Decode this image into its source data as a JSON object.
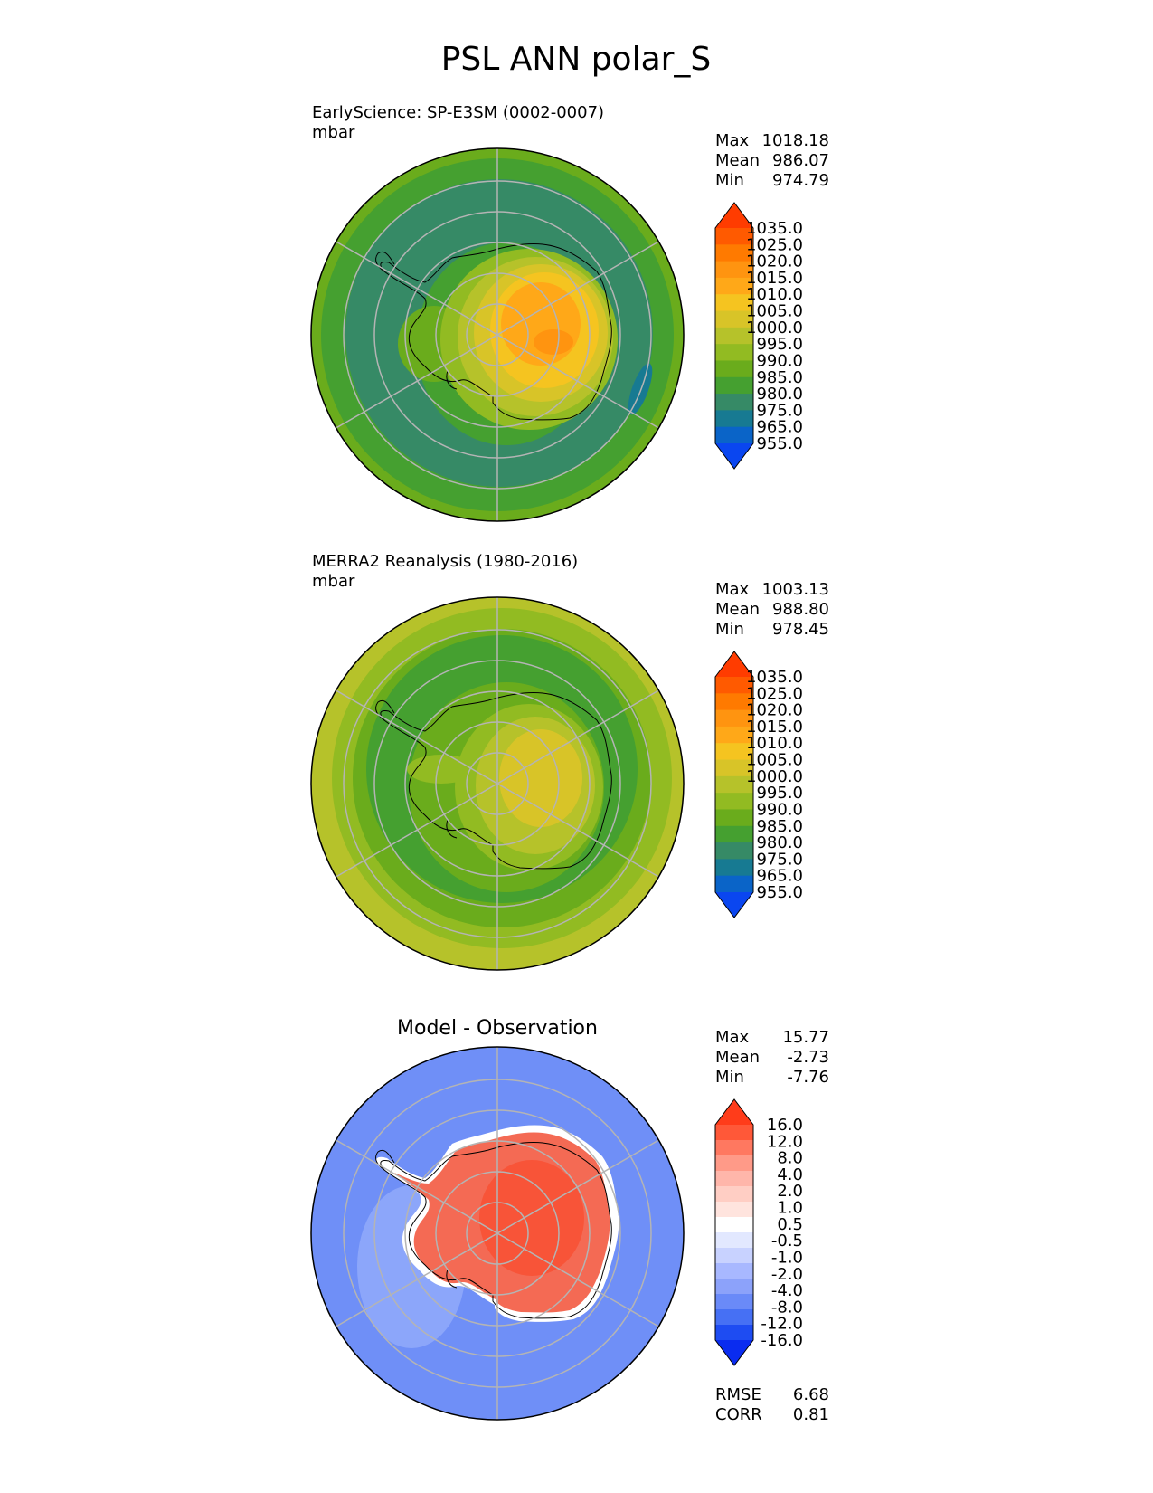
{
  "figure_title": "PSL ANN polar_S",
  "colors": {
    "continent_outline": "#000000",
    "gridline": "#b4b4b4",
    "ocean_test_ring": "#3a8a62",
    "diff_background": "#6f8ff7",
    "diff_positive": "#f2583e"
  },
  "panels": [
    {
      "id": "test",
      "title_line1": "EarlyScience: SP-E3SM (0002-0007)",
      "title_line2": "mbar",
      "stats": [
        {
          "label": "Max",
          "value": "1018.18"
        },
        {
          "label": "Mean",
          "value": "986.07"
        },
        {
          "label": "Min",
          "value": "974.79"
        }
      ],
      "colorbar": {
        "labels": [
          "1035.0",
          "1025.0",
          "1020.0",
          "1015.0",
          "1010.0",
          "1005.0",
          "1000.0",
          "995.0",
          "990.0",
          "985.0",
          "980.0",
          "975.0",
          "965.0",
          "955.0"
        ],
        "colors": [
          "#ff3c00",
          "#ff5a00",
          "#ff7a00",
          "#ff9410",
          "#ffa818",
          "#f5c420",
          "#d8c428",
          "#b6c22a",
          "#92bb22",
          "#6aac1c",
          "#45a030",
          "#368a66",
          "#177a92",
          "#0a64c8",
          "#0a46f0"
        ]
      }
    },
    {
      "id": "reference",
      "title_line1": "MERRA2 Reanalysis (1980-2016)",
      "title_line2": "mbar",
      "stats": [
        {
          "label": "Max",
          "value": "1003.13"
        },
        {
          "label": "Mean",
          "value": "988.80"
        },
        {
          "label": "Min",
          "value": "978.45"
        }
      ],
      "colorbar": {
        "labels": [
          "1035.0",
          "1025.0",
          "1020.0",
          "1015.0",
          "1010.0",
          "1005.0",
          "1000.0",
          "995.0",
          "990.0",
          "985.0",
          "980.0",
          "975.0",
          "965.0",
          "955.0"
        ],
        "colors": [
          "#ff3c00",
          "#ff5a00",
          "#ff7a00",
          "#ff9410",
          "#ffa818",
          "#f5c420",
          "#d8c428",
          "#b6c22a",
          "#92bb22",
          "#6aac1c",
          "#45a030",
          "#368a66",
          "#177a92",
          "#0a64c8",
          "#0a46f0"
        ]
      }
    },
    {
      "id": "difference",
      "title_center": "Model - Observation",
      "stats": [
        {
          "label": "Max",
          "value": "15.77"
        },
        {
          "label": "Mean",
          "value": "-2.73"
        },
        {
          "label": "Min",
          "value": "-7.76"
        }
      ],
      "colorbar": {
        "labels": [
          "16.0",
          "12.0",
          "8.0",
          "4.0",
          "2.0",
          "1.0",
          "0.5",
          "-0.5",
          "-1.0",
          "-2.0",
          "-4.0",
          "-8.0",
          "-12.0",
          "-16.0"
        ],
        "colors": [
          "#ff3c1a",
          "#ff5838",
          "#ff7860",
          "#ff9a88",
          "#ffb6aa",
          "#ffcec4",
          "#ffe4de",
          "#ffffff",
          "#e2e8ff",
          "#c8d2ff",
          "#a8b8ff",
          "#8ca2fa",
          "#6a8af8",
          "#4670f4",
          "#1e4cf2",
          "#0a2cf0"
        ]
      },
      "metrics": [
        {
          "label": "RMSE",
          "value": "6.68"
        },
        {
          "label": "CORR",
          "value": "0.81"
        }
      ]
    }
  ]
}
